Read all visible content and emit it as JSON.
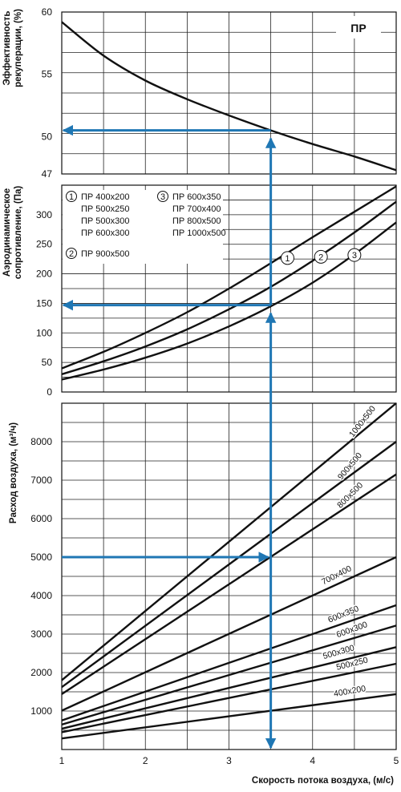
{
  "chart_data": [
    {
      "type": "line",
      "badge": "ПР",
      "ylabel": "Эффективность рекуперации, (%)",
      "ylim": [
        47,
        60
      ],
      "yticks": [
        60,
        55,
        50,
        47
      ],
      "xlim": [
        1,
        5
      ],
      "series": [
        {
          "x": [
            1,
            1.5,
            2,
            2.5,
            3,
            3.5,
            4,
            4.5,
            5
          ],
          "y": [
            59.2,
            56.5,
            54.5,
            53.0,
            51.7,
            50.5,
            49.4,
            48.4,
            47.3
          ]
        }
      ]
    },
    {
      "type": "line",
      "ylabel": "Аэродинамическое сопротивление, (Па)",
      "ylim": [
        0,
        350
      ],
      "yticks": [
        0,
        50,
        100,
        150,
        200,
        250,
        300
      ],
      "xlim": [
        1,
        5
      ],
      "legend": [
        {
          "num": "1",
          "lines": [
            "ПР 400x200",
            "ПР 500x250",
            "ПР 500x300",
            "ПР 600x300"
          ]
        },
        {
          "num": "2",
          "lines": [
            "ПР 900x500"
          ]
        },
        {
          "num": "3",
          "lines": [
            "ПР 600x350",
            "ПР 700x400",
            "ПР 800x500",
            "ПР 1000x500"
          ]
        }
      ],
      "series": [
        {
          "name": "1",
          "x": [
            1,
            1.5,
            2,
            2.5,
            3,
            3.5,
            4,
            4.5,
            5
          ],
          "y": [
            40,
            68,
            100,
            135,
            175,
            218,
            262,
            305,
            348
          ]
        },
        {
          "name": "2",
          "x": [
            1,
            1.5,
            2,
            2.5,
            3,
            3.5,
            4,
            4.5,
            5
          ],
          "y": [
            30,
            52,
            77,
            106,
            140,
            178,
            222,
            270,
            322
          ]
        },
        {
          "name": "3",
          "x": [
            1,
            1.5,
            2,
            2.5,
            3,
            3.5,
            4,
            4.5,
            5
          ],
          "y": [
            21,
            38,
            58,
            82,
            111,
            145,
            185,
            233,
            287
          ]
        }
      ]
    },
    {
      "type": "line",
      "ylabel": "Расход воздуха, (м³/ч)",
      "xlabel": "Скорость потока воздуха, (м/с)",
      "ylim": [
        0,
        9000
      ],
      "yticks": [
        1000,
        2000,
        3000,
        4000,
        5000,
        6000,
        7000,
        8000
      ],
      "xlim": [
        1,
        5
      ],
      "xticks": [
        1,
        2,
        3,
        4,
        5
      ],
      "series": [
        {
          "name": "1000x500",
          "x": [
            1,
            5
          ],
          "y": [
            1800,
            9000
          ]
        },
        {
          "name": "900x500",
          "x": [
            1,
            5
          ],
          "y": [
            1620,
            8000
          ]
        },
        {
          "name": "800x500",
          "x": [
            1,
            5
          ],
          "y": [
            1440,
            7150
          ]
        },
        {
          "name": "700x400",
          "x": [
            1,
            5
          ],
          "y": [
            1010,
            5000
          ]
        },
        {
          "name": "600x350",
          "x": [
            1,
            5
          ],
          "y": [
            756,
            3750
          ]
        },
        {
          "name": "600x300",
          "x": [
            1,
            5
          ],
          "y": [
            648,
            3220
          ]
        },
        {
          "name": "500x300",
          "x": [
            1,
            5
          ],
          "y": [
            540,
            2660
          ]
        },
        {
          "name": "500x250",
          "x": [
            1,
            5
          ],
          "y": [
            450,
            2230
          ]
        },
        {
          "name": "400x200",
          "x": [
            1,
            5
          ],
          "y": [
            288,
            1440
          ]
        }
      ]
    }
  ],
  "example": {
    "x": 3.5,
    "flow": 5000,
    "pressure": 147,
    "efficiency": 50.5
  },
  "colors": {
    "arrow": "#1f77b4",
    "ink": "#111111"
  }
}
